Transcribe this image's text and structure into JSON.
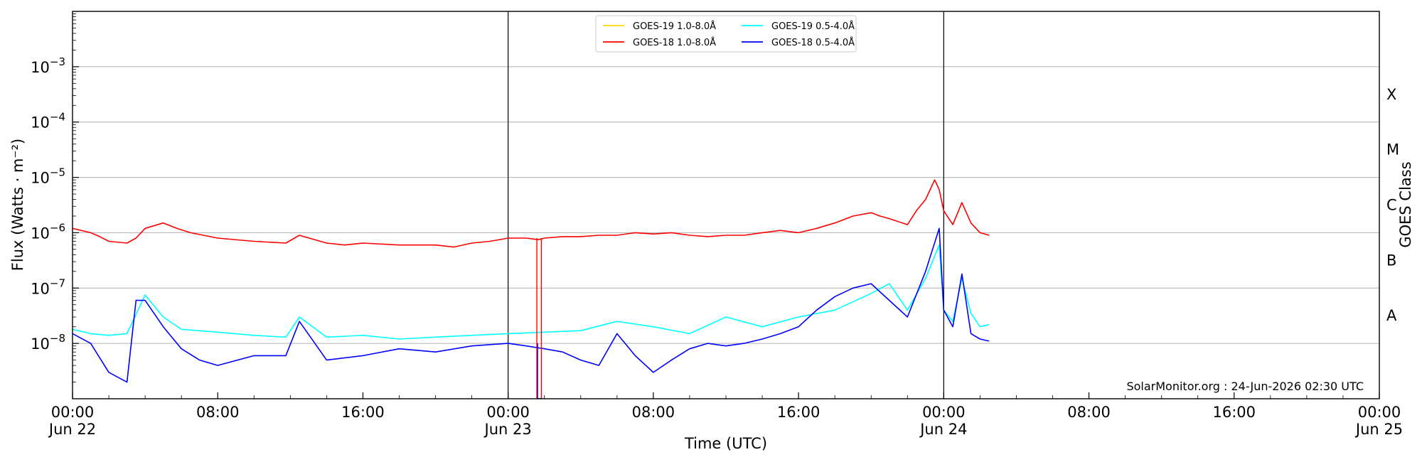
{
  "chart_data": {
    "type": "line",
    "title": "",
    "xlabel": "Time (UTC)",
    "ylabel": "Flux (Watts · m⁻²)",
    "y2label": "GOES Class",
    "y_scale": "log",
    "ylim": [
      1e-09,
      0.01
    ],
    "xlim": [
      "2026-06-22 00:00",
      "2026-06-25 00:00"
    ],
    "grid": "horizontal at decades",
    "legend_position": "top-center",
    "x_ticks": [
      {
        "t": "2026-06-22 00:00",
        "line1": "00:00",
        "line2": "Jun 22"
      },
      {
        "t": "2026-06-22 08:00",
        "line1": "08:00",
        "line2": ""
      },
      {
        "t": "2026-06-22 16:00",
        "line1": "16:00",
        "line2": ""
      },
      {
        "t": "2026-06-23 00:00",
        "line1": "00:00",
        "line2": "Jun 23"
      },
      {
        "t": "2026-06-23 08:00",
        "line1": "08:00",
        "line2": ""
      },
      {
        "t": "2026-06-23 16:00",
        "line1": "16:00",
        "line2": ""
      },
      {
        "t": "2026-06-24 00:00",
        "line1": "00:00",
        "line2": "Jun 24"
      },
      {
        "t": "2026-06-24 08:00",
        "line1": "08:00",
        "line2": ""
      },
      {
        "t": "2026-06-24 16:00",
        "line1": "16:00",
        "line2": ""
      },
      {
        "t": "2026-06-25 00:00",
        "line1": "00:00",
        "line2": "Jun 25"
      }
    ],
    "y_ticks": [
      {
        "value": 1e-08,
        "base": "10",
        "exp": "−8"
      },
      {
        "value": 1e-07,
        "base": "10",
        "exp": "−7"
      },
      {
        "value": 1e-06,
        "base": "10",
        "exp": "−6"
      },
      {
        "value": 1e-05,
        "base": "10",
        "exp": "−5"
      },
      {
        "value": 0.0001,
        "base": "10",
        "exp": "−4"
      },
      {
        "value": 0.001,
        "base": "10",
        "exp": "−3"
      }
    ],
    "goes_classes": [
      {
        "label": "A",
        "value": 3.16e-08
      },
      {
        "label": "B",
        "value": 3.16e-07
      },
      {
        "label": "C",
        "value": 3.16e-06
      },
      {
        "label": "M",
        "value": 3.16e-05
      },
      {
        "label": "X",
        "value": 0.000316
      }
    ],
    "day_lines": [
      "2026-06-23 00:00",
      "2026-06-24 00:00"
    ],
    "credit": "SolarMonitor.org : 24-Jun-2026 02:30 UTC",
    "series": [
      {
        "name": "GOES-19 1.0-8.0Å",
        "color": "#ffd700",
        "x": [],
        "y": []
      },
      {
        "name": "GOES-18 1.0-8.0Å",
        "color": "#ff0000",
        "x": [
          "2026-06-22 00:00",
          "2026-06-22 01:00",
          "2026-06-22 01:30",
          "2026-06-22 02:00",
          "2026-06-22 03:00",
          "2026-06-22 03:30",
          "2026-06-22 04:00",
          "2026-06-22 05:00",
          "2026-06-22 05:45",
          "2026-06-22 06:30",
          "2026-06-22 08:00",
          "2026-06-22 10:00",
          "2026-06-22 11:45",
          "2026-06-22 12:30",
          "2026-06-22 14:00",
          "2026-06-22 15:00",
          "2026-06-22 16:00",
          "2026-06-22 18:00",
          "2026-06-22 20:00",
          "2026-06-22 21:00",
          "2026-06-22 22:00",
          "2026-06-22 23:00",
          "2026-06-23 00:00",
          "2026-06-23 01:00",
          "2026-06-23 01:40",
          "2026-06-23 02:00",
          "2026-06-23 03:00",
          "2026-06-23 04:00",
          "2026-06-23 05:00",
          "2026-06-23 06:00",
          "2026-06-23 07:00",
          "2026-06-23 08:00",
          "2026-06-23 09:00",
          "2026-06-23 10:00",
          "2026-06-23 11:00",
          "2026-06-23 12:00",
          "2026-06-23 13:00",
          "2026-06-23 14:00",
          "2026-06-23 15:00",
          "2026-06-23 16:00",
          "2026-06-23 17:00",
          "2026-06-23 18:00",
          "2026-06-23 19:00",
          "2026-06-23 20:00",
          "2026-06-23 20:30",
          "2026-06-23 21:00",
          "2026-06-23 22:00",
          "2026-06-23 22:30",
          "2026-06-23 23:00",
          "2026-06-23 23:30",
          "2026-06-23 23:45",
          "2026-06-24 00:00",
          "2026-06-24 00:30",
          "2026-06-24 01:00",
          "2026-06-24 01:30",
          "2026-06-24 02:00",
          "2026-06-24 02:30"
        ],
        "y": [
          1.2e-06,
          1e-06,
          8.5e-07,
          7e-07,
          6.5e-07,
          8e-07,
          1.2e-06,
          1.5e-06,
          1.2e-06,
          1e-06,
          8e-07,
          7e-07,
          6.5e-07,
          9e-07,
          6.5e-07,
          6e-07,
          6.5e-07,
          6e-07,
          6e-07,
          5.5e-07,
          6.5e-07,
          7e-07,
          8e-07,
          8e-07,
          7.5e-07,
          8e-07,
          8.5e-07,
          8.5e-07,
          9e-07,
          9e-07,
          1e-06,
          9.5e-07,
          1e-06,
          9e-07,
          8.5e-07,
          9e-07,
          9e-07,
          1e-06,
          1.1e-06,
          1e-06,
          1.2e-06,
          1.5e-06,
          2e-06,
          2.3e-06,
          2e-06,
          1.8e-06,
          1.4e-06,
          2.5e-06,
          4e-06,
          9e-06,
          6e-06,
          2.5e-06,
          1.4e-06,
          3.5e-06,
          1.5e-06,
          1e-06,
          9e-07
        ]
      },
      {
        "name": "GOES-19 0.5-4.0Å",
        "color": "#00ffff",
        "x": [
          "2026-06-22 00:00",
          "2026-06-22 01:00",
          "2026-06-22 02:00",
          "2026-06-22 03:00",
          "2026-06-22 04:00",
          "2026-06-22 05:00",
          "2026-06-22 06:00",
          "2026-06-22 08:00",
          "2026-06-22 10:00",
          "2026-06-22 11:45",
          "2026-06-22 12:30",
          "2026-06-22 14:00",
          "2026-06-22 16:00",
          "2026-06-22 18:00",
          "2026-06-22 20:00",
          "2026-06-22 22:00",
          "2026-06-23 00:00",
          "2026-06-23 02:00",
          "2026-06-23 04:00",
          "2026-06-23 06:00",
          "2026-06-23 08:00",
          "2026-06-23 10:00",
          "2026-06-23 12:00",
          "2026-06-23 14:00",
          "2026-06-23 16:00",
          "2026-06-23 18:00",
          "2026-06-23 20:00",
          "2026-06-23 21:00",
          "2026-06-23 22:00",
          "2026-06-23 23:00",
          "2026-06-23 23:45",
          "2026-06-24 00:00",
          "2026-06-24 00:30",
          "2026-06-24 01:00",
          "2026-06-24 01:30",
          "2026-06-24 02:00",
          "2026-06-24 02:30"
        ],
        "y": [
          1.8e-08,
          1.5e-08,
          1.4e-08,
          1.5e-08,
          7.5e-08,
          3e-08,
          1.8e-08,
          1.6e-08,
          1.4e-08,
          1.3e-08,
          3e-08,
          1.3e-08,
          1.4e-08,
          1.2e-08,
          1.3e-08,
          1.4e-08,
          1.5e-08,
          1.6e-08,
          1.7e-08,
          2.5e-08,
          2e-08,
          1.5e-08,
          3e-08,
          2e-08,
          3e-08,
          4e-08,
          8e-08,
          1.2e-07,
          4e-08,
          1.5e-07,
          6e-07,
          4e-08,
          2.5e-08,
          1.5e-07,
          3.5e-08,
          2e-08,
          2.2e-08
        ]
      },
      {
        "name": "GOES-18 0.5-4.0Å",
        "color": "#0000ff",
        "x": [
          "2026-06-22 00:00",
          "2026-06-22 01:00",
          "2026-06-22 02:00",
          "2026-06-22 03:00",
          "2026-06-22 03:30",
          "2026-06-22 04:00",
          "2026-06-22 05:00",
          "2026-06-22 06:00",
          "2026-06-22 07:00",
          "2026-06-22 08:00",
          "2026-06-22 10:00",
          "2026-06-22 11:45",
          "2026-06-22 12:30",
          "2026-06-22 14:00",
          "2026-06-22 16:00",
          "2026-06-22 18:00",
          "2026-06-22 20:00",
          "2026-06-22 22:00",
          "2026-06-23 00:00",
          "2026-06-23 01:00",
          "2026-06-23 02:00",
          "2026-06-23 03:00",
          "2026-06-23 04:00",
          "2026-06-23 05:00",
          "2026-06-23 06:00",
          "2026-06-23 07:00",
          "2026-06-23 08:00",
          "2026-06-23 09:00",
          "2026-06-23 10:00",
          "2026-06-23 11:00",
          "2026-06-23 12:00",
          "2026-06-23 13:00",
          "2026-06-23 14:00",
          "2026-06-23 15:00",
          "2026-06-23 16:00",
          "2026-06-23 17:00",
          "2026-06-23 18:00",
          "2026-06-23 19:00",
          "2026-06-23 20:00",
          "2026-06-23 21:00",
          "2026-06-23 22:00",
          "2026-06-23 23:00",
          "2026-06-23 23:45",
          "2026-06-24 00:00",
          "2026-06-24 00:30",
          "2026-06-24 01:00",
          "2026-06-24 01:30",
          "2026-06-24 02:00",
          "2026-06-24 02:30"
        ],
        "y": [
          1.5e-08,
          1e-08,
          3e-09,
          2e-09,
          6e-08,
          6e-08,
          2e-08,
          8e-09,
          5e-09,
          4e-09,
          6e-09,
          6e-09,
          2.5e-08,
          5e-09,
          6e-09,
          8e-09,
          7e-09,
          9e-09,
          1e-08,
          9e-09,
          8e-09,
          7e-09,
          5e-09,
          4e-09,
          1.5e-08,
          6e-09,
          3e-09,
          5e-09,
          8e-09,
          1e-08,
          9e-09,
          1e-08,
          1.2e-08,
          1.5e-08,
          2e-08,
          4e-08,
          7e-08,
          1e-07,
          1.2e-07,
          6e-08,
          3e-08,
          2e-07,
          1.2e-06,
          4e-08,
          2e-08,
          1.8e-07,
          1.5e-08,
          1.2e-08,
          1.1e-08
        ]
      }
    ]
  }
}
